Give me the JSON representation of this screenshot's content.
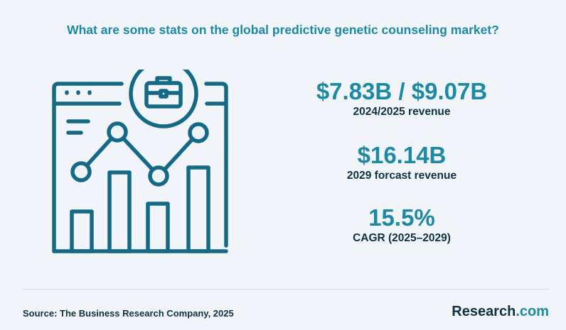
{
  "title": "What are some stats on the global predictive genetic counseling market?",
  "illustration": {
    "icons": [
      "browser-window-icon",
      "briefcase-icon",
      "bar-chart-icon",
      "line-chart-icon"
    ],
    "stroke_color": "#146a86",
    "node_fill": "#eef3f7"
  },
  "stats": [
    {
      "value": "$7.83B / $9.07B",
      "label": "2024/2025 revenue"
    },
    {
      "value": "$16.14B",
      "label": "2029 forcast revenue"
    },
    {
      "value": "15.5%",
      "label": "CAGR (2025–2029)"
    }
  ],
  "footer": {
    "source": "Source:  The Business Research Company, 2025",
    "brand_name": "Research",
    "brand_tld": ".com"
  },
  "colors": {
    "accent": "#1d8aa3",
    "text_dark": "#0f3142",
    "background": "#f1f5f9"
  }
}
